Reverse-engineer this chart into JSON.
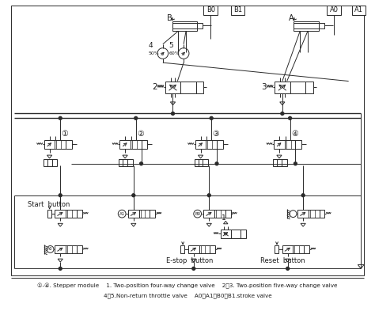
{
  "bg_color": "#ffffff",
  "line_color": "#2a2a2a",
  "text_color": "#1a1a1a",
  "legend_line1": "①-④. Stepper module    1. Two-position four-way change valve    2、3. Two-position five-way change valve",
  "legend_line2": "4、5.Non-return throttle valve    A0、A1、B0、B1.stroke valve",
  "stepper_labels": [
    "①",
    "②",
    "③",
    "④"
  ],
  "start_label": "Start  button",
  "estop_label": "E-stop  button",
  "reset_label": "Reset  button"
}
